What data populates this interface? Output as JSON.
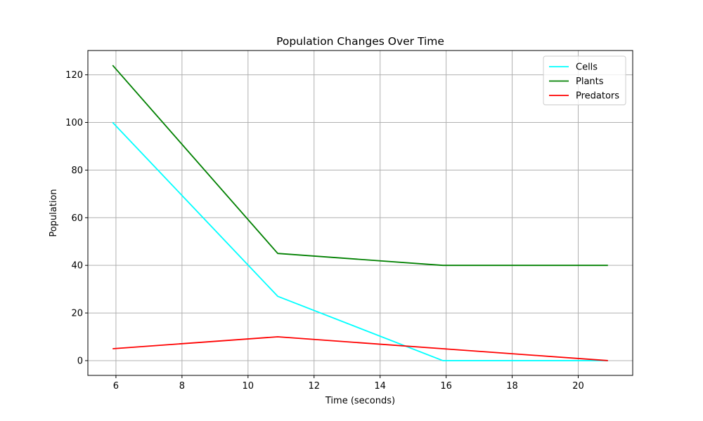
{
  "chart_data": {
    "type": "line",
    "title": "Population Changes Over Time",
    "xlabel": "Time (seconds)",
    "ylabel": "Population",
    "x": [
      5.9,
      10.9,
      15.9,
      20.9
    ],
    "xlim": [
      5.15,
      21.65
    ],
    "ylim": [
      -6.2,
      130.2
    ],
    "xticks": [
      6,
      8,
      10,
      12,
      14,
      16,
      18,
      20
    ],
    "yticks": [
      0,
      20,
      40,
      60,
      80,
      100,
      120
    ],
    "grid": true,
    "legend_position": "top-right",
    "series": [
      {
        "name": "Cells",
        "color": "#00FFFF",
        "values": [
          100,
          27,
          0,
          0
        ]
      },
      {
        "name": "Plants",
        "color": "#008000",
        "values": [
          124,
          45,
          40,
          40
        ]
      },
      {
        "name": "Predators",
        "color": "#FF0000",
        "values": [
          5,
          10,
          5,
          0
        ]
      }
    ]
  }
}
